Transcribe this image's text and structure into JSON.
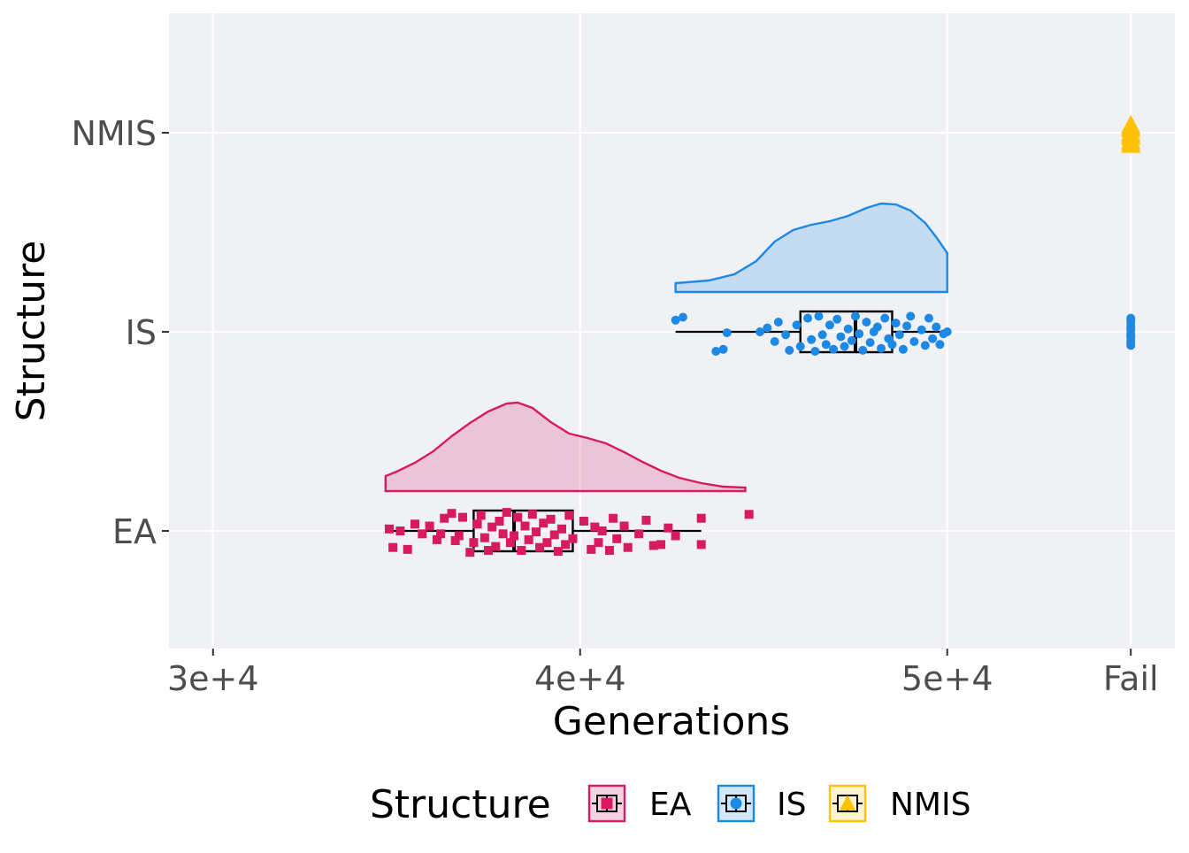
{
  "chart_data": {
    "type": "raincloud",
    "orientation": "horizontal",
    "xlabel": "Generations",
    "ylabel": "Structure",
    "x_ticks": [
      {
        "value": 30000,
        "label": "3e+4"
      },
      {
        "value": 40000,
        "label": "4e+4"
      },
      {
        "value": 50000,
        "label": "5e+4"
      },
      {
        "value": 55000,
        "label": "Fail"
      }
    ],
    "xlim": [
      28800,
      56200
    ],
    "categories": [
      "EA",
      "IS",
      "NMIS"
    ],
    "legend": {
      "title": "Structure",
      "position": "bottom",
      "entries": [
        {
          "label": "EA",
          "color": "#d81b60",
          "shape": "square"
        },
        {
          "label": "IS",
          "color": "#1e88e5",
          "shape": "circle"
        },
        {
          "label": "NMIS",
          "color": "#ffc107",
          "shape": "triangle"
        }
      ]
    },
    "grid": true,
    "colors": {
      "panel": "#eff1f5",
      "grid": "#ffffff",
      "EA": "#d81b60",
      "IS": "#1e88e5",
      "NMIS": "#ffc107"
    },
    "series": [
      {
        "name": "EA",
        "color": "#d81b60",
        "shape": "square",
        "box": {
          "whisker_low": 34700,
          "q1": 37100,
          "median": 38200,
          "q3": 39800,
          "whisker_high": 43300
        },
        "density": [
          [
            34700,
            0.17
          ],
          [
            35000,
            0.22
          ],
          [
            35500,
            0.32
          ],
          [
            36000,
            0.45
          ],
          [
            36500,
            0.62
          ],
          [
            37000,
            0.77
          ],
          [
            37500,
            0.9
          ],
          [
            38000,
            0.99
          ],
          [
            38300,
            1.0
          ],
          [
            38700,
            0.94
          ],
          [
            39200,
            0.78
          ],
          [
            39700,
            0.65
          ],
          [
            40200,
            0.6
          ],
          [
            40700,
            0.54
          ],
          [
            41200,
            0.44
          ],
          [
            41700,
            0.33
          ],
          [
            42200,
            0.23
          ],
          [
            42700,
            0.15
          ],
          [
            43300,
            0.09
          ],
          [
            43900,
            0.05
          ],
          [
            44500,
            0.04
          ]
        ],
        "points": [
          [
            34900,
            0.17
          ],
          [
            34800,
            -0.02
          ],
          [
            35100,
            0.0
          ],
          [
            35300,
            0.19
          ],
          [
            35500,
            -0.07
          ],
          [
            35700,
            0.03
          ],
          [
            35900,
            -0.05
          ],
          [
            36100,
            0.09
          ],
          [
            36200,
            0.03
          ],
          [
            36300,
            -0.13
          ],
          [
            36500,
            -0.18
          ],
          [
            36600,
            0.1
          ],
          [
            36700,
            0.05
          ],
          [
            36800,
            -0.14
          ],
          [
            37000,
            0.22
          ],
          [
            37100,
            0.12
          ],
          [
            37200,
            -0.07
          ],
          [
            37300,
            -0.16
          ],
          [
            37400,
            0.07
          ],
          [
            37500,
            0.2
          ],
          [
            37600,
            -0.04
          ],
          [
            37700,
            0.16
          ],
          [
            37800,
            -0.1
          ],
          [
            37900,
            0.03
          ],
          [
            38000,
            -0.19
          ],
          [
            38100,
            0.12
          ],
          [
            38200,
            0.05
          ],
          [
            38300,
            -0.14
          ],
          [
            38400,
            0.2
          ],
          [
            38500,
            -0.05
          ],
          [
            38600,
            0.09
          ],
          [
            38700,
            -0.17
          ],
          [
            38800,
            0.01
          ],
          [
            38900,
            0.17
          ],
          [
            39000,
            -0.08
          ],
          [
            39100,
            0.12
          ],
          [
            39200,
            -0.12
          ],
          [
            39300,
            0.04
          ],
          [
            39400,
            0.21
          ],
          [
            39500,
            -0.02
          ],
          [
            39600,
            0.14
          ],
          [
            39700,
            -0.16
          ],
          [
            39800,
            0.08
          ],
          [
            40100,
            -0.1
          ],
          [
            40300,
            0.19
          ],
          [
            40400,
            -0.04
          ],
          [
            40500,
            0.12
          ],
          [
            40600,
            0.0
          ],
          [
            40800,
            0.2
          ],
          [
            40900,
            -0.13
          ],
          [
            41000,
            0.08
          ],
          [
            41200,
            -0.05
          ],
          [
            41300,
            0.17
          ],
          [
            41600,
            0.03
          ],
          [
            41800,
            -0.11
          ],
          [
            42000,
            0.15
          ],
          [
            42200,
            0.14
          ],
          [
            42400,
            -0.03
          ],
          [
            42600,
            0.05
          ],
          [
            43300,
            0.14
          ],
          [
            43300,
            -0.13
          ],
          [
            44600,
            -0.17
          ]
        ]
      },
      {
        "name": "IS",
        "color": "#1e88e5",
        "shape": "circle",
        "box": {
          "whisker_low": 42600,
          "q1": 46000,
          "median": 47500,
          "q3": 48500,
          "whisker_high": 50000
        },
        "density": [
          [
            42600,
            0.1
          ],
          [
            43500,
            0.13
          ],
          [
            44200,
            0.2
          ],
          [
            44800,
            0.35
          ],
          [
            45300,
            0.57
          ],
          [
            45800,
            0.7
          ],
          [
            46300,
            0.76
          ],
          [
            46800,
            0.8
          ],
          [
            47300,
            0.86
          ],
          [
            47800,
            0.95
          ],
          [
            48200,
            1.0
          ],
          [
            48600,
            0.99
          ],
          [
            49000,
            0.92
          ],
          [
            49400,
            0.78
          ],
          [
            49700,
            0.62
          ],
          [
            50000,
            0.44
          ]
        ],
        "points": [
          [
            42600,
            -0.12
          ],
          [
            42800,
            -0.15
          ],
          [
            43700,
            0.2
          ],
          [
            43900,
            0.18
          ],
          [
            44000,
            0.01
          ],
          [
            44900,
            0.0
          ],
          [
            45100,
            -0.04
          ],
          [
            45300,
            0.1
          ],
          [
            45400,
            -0.1
          ],
          [
            45600,
            0.03
          ],
          [
            45700,
            0.19
          ],
          [
            45900,
            -0.07
          ],
          [
            46000,
            0.15
          ],
          [
            46200,
            -0.14
          ],
          [
            46300,
            0.08
          ],
          [
            46400,
            0.2
          ],
          [
            46500,
            -0.16
          ],
          [
            46600,
            0.03
          ],
          [
            46700,
            0.13
          ],
          [
            46800,
            -0.07
          ],
          [
            46900,
            0.18
          ],
          [
            47000,
            -0.13
          ],
          [
            47100,
            0.05
          ],
          [
            47200,
            0.15
          ],
          [
            47300,
            -0.03
          ],
          [
            47400,
            0.09
          ],
          [
            47500,
            -0.16
          ],
          [
            47600,
            0.02
          ],
          [
            47700,
            0.19
          ],
          [
            47800,
            -0.1
          ],
          [
            47900,
            0.11
          ],
          [
            48000,
            0.0
          ],
          [
            48100,
            -0.05
          ],
          [
            48200,
            0.17
          ],
          [
            48300,
            -0.14
          ],
          [
            48400,
            0.07
          ],
          [
            48500,
            0.13
          ],
          [
            48600,
            -0.09
          ],
          [
            48700,
            0.03
          ],
          [
            48800,
            0.18
          ],
          [
            48900,
            -0.06
          ],
          [
            49000,
            -0.16
          ],
          [
            49100,
            0.1
          ],
          [
            49300,
            -0.02
          ],
          [
            49400,
            0.14
          ],
          [
            49500,
            -0.14
          ],
          [
            49600,
            0.07
          ],
          [
            49700,
            -0.05
          ],
          [
            49800,
            0.13
          ],
          [
            49900,
            0.02
          ],
          [
            50000,
            0.0
          ],
          [
            55000,
            0.14
          ],
          [
            55000,
            0.1
          ],
          [
            55000,
            0.06
          ],
          [
            55000,
            0.02
          ],
          [
            55000,
            -0.02
          ],
          [
            55000,
            -0.06
          ],
          [
            55000,
            -0.1
          ],
          [
            55000,
            -0.14
          ],
          [
            55000,
            0.12
          ],
          [
            55000,
            0.04
          ],
          [
            55000,
            -0.04
          ],
          [
            55000,
            -0.12
          ]
        ]
      },
      {
        "name": "NMIS",
        "color": "#ffc107",
        "shape": "triangle",
        "box": null,
        "density": [],
        "points": [
          [
            55000,
            0.12
          ],
          [
            55000,
            0.08
          ],
          [
            55000,
            0.04
          ],
          [
            55000,
            0.0
          ],
          [
            55000,
            -0.04
          ],
          [
            55000,
            -0.08
          ],
          [
            55000,
            0.1
          ],
          [
            55000,
            0.02
          ],
          [
            55000,
            -0.06
          ]
        ]
      }
    ]
  }
}
